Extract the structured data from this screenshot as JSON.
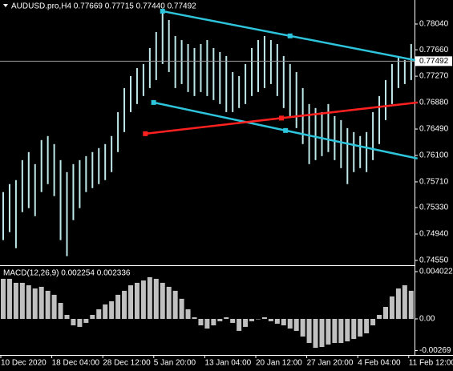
{
  "chart_data": [
    {
      "type": "ohlc",
      "title": "AUDUSD.pro,H4  0.77669 0.77715 0.77440 0.77492",
      "categories": [
        "10 Dec 2020",
        null,
        null,
        null,
        null,
        null,
        null,
        null,
        "18 Dec 04:00",
        null,
        null,
        null,
        null,
        null,
        null,
        null,
        "28 Dec 12:00",
        null,
        null,
        null,
        null,
        null,
        null,
        null,
        "5 Jan 20:00",
        null,
        null,
        null,
        null,
        null,
        null,
        null,
        "13 Jan 04:00",
        null,
        null,
        null,
        null,
        null,
        null,
        null,
        "20 Jan 12:00",
        null,
        null,
        null,
        null,
        null,
        null,
        null,
        "27 Jan 20:00",
        null,
        null,
        null,
        null,
        null,
        null,
        null,
        "4 Feb 04:00",
        null,
        null,
        null,
        null,
        null,
        null,
        null,
        "11 Feb 12:00"
      ],
      "high": [
        0.75559,
        0.75677,
        0.75736,
        0.76031,
        0.7615,
        0.75972,
        0.76327,
        0.76386,
        0.76268,
        0.76031,
        0.75854,
        0.75972,
        0.76031,
        0.7609,
        0.7615,
        0.76209,
        0.76268,
        0.76386,
        0.7674,
        0.77095,
        0.77272,
        0.7739,
        0.7745,
        0.77686,
        0.77922,
        0.7823,
        0.781,
        0.77863,
        0.77804,
        0.77745,
        0.77686,
        0.77745,
        0.77804,
        0.77686,
        0.77627,
        0.77568,
        0.77331,
        0.77272,
        0.7745,
        0.77686,
        0.77804,
        0.77863,
        0.77804,
        0.77745,
        0.77568,
        0.7745,
        0.77331,
        0.77095,
        0.76859,
        0.768,
        0.7674,
        0.76859,
        0.76681,
        0.76622,
        0.76504,
        0.76445,
        0.76386,
        0.76445,
        0.7674,
        0.76977,
        0.77213,
        0.7745,
        0.77568,
        0.77509,
        0.77745
      ],
      "low": [
        0.7485,
        0.74968,
        0.74731,
        0.75263,
        0.75322,
        0.75204,
        0.75559,
        0.75677,
        0.755,
        0.7485,
        0.74613,
        0.75145,
        0.75322,
        0.75559,
        0.75618,
        0.75677,
        0.75736,
        0.75854,
        0.7615,
        0.76445,
        0.7674,
        0.76859,
        0.76977,
        0.77095,
        0.77213,
        0.7745,
        0.77331,
        0.77095,
        0.77154,
        0.77036,
        0.76977,
        0.77036,
        0.76977,
        0.76918,
        0.76859,
        0.7674,
        0.7674,
        0.768,
        0.76859,
        0.76977,
        0.77036,
        0.77095,
        0.77154,
        0.76977,
        0.768,
        0.76681,
        0.76504,
        0.76268,
        0.75972,
        0.76031,
        0.7609,
        0.7615,
        0.76031,
        0.75913,
        0.75677,
        0.75854,
        0.75913,
        0.75854,
        0.76031,
        0.76268,
        0.76622,
        0.76859,
        0.77095,
        0.77154,
        0.77213
      ],
      "color": "#bfe8ea",
      "lines": [
        {
          "color": "#2ec5dc",
          "x": [
            25,
            65
          ],
          "values": [
            0.7823,
            0.775
          ]
        },
        {
          "color": "#2ec5dc",
          "x": [
            23.6,
            65
          ],
          "values": [
            0.76882,
            0.76055
          ]
        },
        {
          "color": "#ff2020",
          "x": [
            22.3,
            65
          ],
          "values": [
            0.76421,
            0.76882
          ]
        }
      ],
      "current": 0.77492,
      "ylim": [
        0.74491,
        0.78395
      ],
      "yticks": [
        {
          "value": 0.7804,
          "label": "0.78040"
        },
        {
          "value": 0.7766,
          "label": "0.77660"
        },
        {
          "value": 0.7727,
          "label": "0.77270"
        },
        {
          "value": 0.7688,
          "label": "0.76880"
        },
        {
          "value": 0.7649,
          "label": "0.76490"
        },
        {
          "value": 0.761,
          "label": "0.76100"
        },
        {
          "value": 0.7571,
          "label": "0.75710"
        },
        {
          "value": 0.7533,
          "label": "0.75330"
        },
        {
          "value": 0.7494,
          "label": "0.74940"
        },
        {
          "value": 0.7455,
          "label": "0.74550"
        }
      ]
    },
    {
      "type": "histogram-bar",
      "title": "MACD(12,26,9) 0.002254 0.002336",
      "values": [
        0.00341,
        0.00341,
        0.00307,
        0.00307,
        0.00286,
        0.00259,
        0.00273,
        0.00239,
        0.00205,
        0.00136,
        0.00034,
        -0.00055,
        -0.00068,
        -0.00034,
        0.00034,
        0.00082,
        0.00123,
        0.0015,
        0.00205,
        0.00239,
        0.00286,
        0.00307,
        0.00327,
        0.00355,
        0.00341,
        0.00307,
        0.00273,
        0.00239,
        0.00171,
        0.00082,
        0.00014,
        -0.00055,
        -0.00082,
        -0.00055,
        -0.0002,
        0.00014,
        -0.00034,
        -0.00102,
        -0.00068,
        -0.0002,
        0,
        0.00014,
        -0.0002,
        -0.00041,
        -0.00055,
        -0.00082,
        -0.00102,
        -0.0015,
        -0.00205,
        -0.00246,
        -0.00239,
        -0.00218,
        -0.00205,
        -0.00205,
        -0.00191,
        -0.00171,
        -0.0015,
        -0.00123,
        -0.00055,
        0.00034,
        0.00102,
        0.00191,
        0.00259,
        0.00286,
        0.00239
      ],
      "color": "#c0c0c0",
      "ylim": [
        -0.00307,
        0.00443
      ],
      "yticks": [
        0.004022,
        {
          "value": 0,
          "label": "0.00"
        },
        -0.00269
      ]
    }
  ]
}
